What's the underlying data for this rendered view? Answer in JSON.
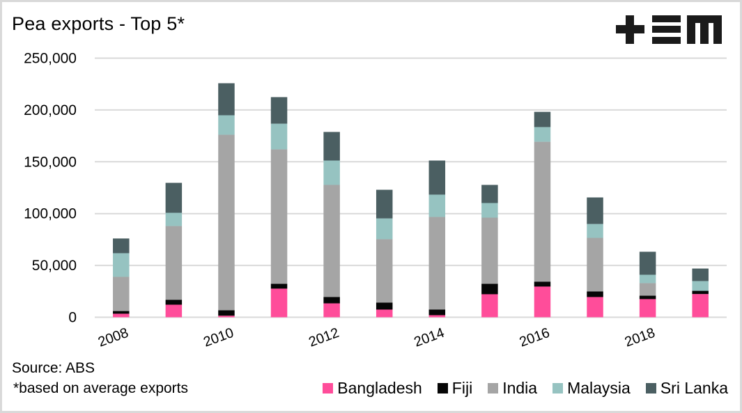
{
  "header": {
    "title": "Pea exports - Top 5*",
    "logo": "+EM"
  },
  "footer": {
    "source": "Source: ABS",
    "footnote": "*based on average exports"
  },
  "chart_data": {
    "type": "bar",
    "stacked": true,
    "title": "Pea exports - Top 5*",
    "xlabel": "",
    "ylabel": "",
    "ylim": [
      0,
      250000
    ],
    "yticks": [
      0,
      50000,
      100000,
      150000,
      200000,
      250000
    ],
    "ytick_labels": [
      "0",
      "50,000",
      "100,000",
      "150,000",
      "200,000",
      "250,000"
    ],
    "grid": true,
    "legend_position": "bottom-right",
    "categories": [
      "2008",
      "2009",
      "2010",
      "2011",
      "2012",
      "2013",
      "2014",
      "2015",
      "2016",
      "2017",
      "2018",
      "2019"
    ],
    "xtick_labels": [
      "2008",
      "",
      "2010",
      "",
      "2012",
      "",
      "2014",
      "",
      "2016",
      "",
      "2018",
      ""
    ],
    "series": [
      {
        "name": "Bangladesh",
        "color": "#ff4d9a",
        "values": [
          3400,
          12100,
          1500,
          27600,
          13400,
          7400,
          2000,
          22200,
          29600,
          19500,
          17500,
          22400
        ]
      },
      {
        "name": "Fiji",
        "color": "#060606",
        "values": [
          2600,
          4700,
          5200,
          4700,
          6100,
          6700,
          5400,
          10100,
          4700,
          5400,
          3300,
          3100
        ]
      },
      {
        "name": "India",
        "color": "#a5a5a5",
        "values": [
          33000,
          71200,
          169400,
          129700,
          108200,
          61200,
          89400,
          63800,
          135000,
          51700,
          12100,
          0
        ]
      },
      {
        "name": "Malaysia",
        "color": "#96c3c1",
        "values": [
          22800,
          12800,
          18800,
          24800,
          23500,
          20100,
          21500,
          14100,
          14200,
          13400,
          8100,
          9400
        ]
      },
      {
        "name": "Sri Lanka",
        "color": "#4b5f62",
        "values": [
          14200,
          28900,
          30900,
          25600,
          27600,
          27600,
          32900,
          17500,
          14700,
          25600,
          22200,
          12100
        ]
      }
    ]
  }
}
